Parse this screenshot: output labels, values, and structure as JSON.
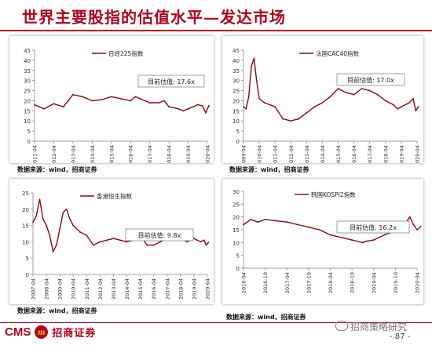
{
  "page": {
    "title": "世界主要股指的估值水平—发达市场",
    "source_1": "数据来源：wind，招商证券",
    "source_2": "数据来源：wind，招商证券",
    "source_3": "数据来源：wind，招商证券",
    "source_4": "数据来源：wind，招商证券",
    "logo_cms": "CMS",
    "logo_seal": "m",
    "logo_cn": "招商证券",
    "watermark": "招商策略研究",
    "page_number": "- 87 -"
  },
  "chart_data": [
    {
      "type": "line",
      "legend": "日经225指数",
      "annotation": "目前估值: 17.6x",
      "ylim": [
        0,
        45
      ],
      "yticks": [
        0,
        5,
        10,
        15,
        20,
        25,
        30,
        35,
        40,
        45
      ],
      "xlim": [
        "2011-04",
        "2020-04"
      ],
      "xticks": [
        "2011-04",
        "2012-04",
        "2013-04",
        "2014-04",
        "2015-04",
        "2016-04",
        "2017-04",
        "2018-04",
        "2019-04",
        "2020-04"
      ],
      "color": "#8b0a0a",
      "x": [
        "2011-04",
        "2011-10",
        "2012-04",
        "2012-10",
        "2013-01",
        "2013-04",
        "2013-10",
        "2014-04",
        "2014-10",
        "2015-04",
        "2015-10",
        "2016-04",
        "2016-07",
        "2016-10",
        "2017-04",
        "2017-10",
        "2018-01",
        "2018-04",
        "2018-10",
        "2019-01",
        "2019-04",
        "2019-10",
        "2020-01",
        "2020-03",
        "2020-05"
      ],
      "y": [
        18,
        16,
        18.5,
        17,
        20,
        23,
        22,
        20,
        20.5,
        22,
        21,
        20,
        22,
        21,
        19,
        19,
        20,
        17,
        16,
        15,
        16,
        18,
        17.5,
        14,
        17.6
      ]
    },
    {
      "type": "line",
      "legend": "法国CAC40指数",
      "annotation": "目前估值: 17.0x",
      "ylim": [
        0,
        45
      ],
      "yticks": [
        0,
        5,
        10,
        15,
        20,
        25,
        30,
        35,
        40,
        45
      ],
      "xlim": [
        "2009-04",
        "2020-04"
      ],
      "xticks": [
        "2009-04",
        "2010-04",
        "2011-04",
        "2012-04",
        "2013-04",
        "2014-04",
        "2015-04",
        "2016-04",
        "2017-04",
        "2018-04",
        "2019-04",
        "2020-04"
      ],
      "color": "#8b0a0a",
      "x": [
        "2009-04",
        "2009-06",
        "2009-08",
        "2009-10",
        "2009-12",
        "2010-02",
        "2010-04",
        "2010-08",
        "2011-04",
        "2011-10",
        "2012-04",
        "2012-10",
        "2013-04",
        "2013-10",
        "2014-04",
        "2014-10",
        "2015-04",
        "2015-10",
        "2016-04",
        "2016-10",
        "2017-04",
        "2017-10",
        "2018-04",
        "2018-10",
        "2019-01",
        "2019-04",
        "2019-10",
        "2020-01",
        "2020-03",
        "2020-05"
      ],
      "y": [
        17,
        16,
        22,
        37,
        41,
        30,
        21,
        19,
        17,
        11,
        10,
        11,
        14,
        17,
        19,
        22,
        26,
        24,
        23,
        26,
        25,
        23,
        20,
        18,
        16,
        17,
        19,
        21,
        15,
        17
      ]
    },
    {
      "type": "line",
      "legend": "香港恒生指数",
      "annotation": "目前估值: 9.8x",
      "ylim": [
        0,
        25
      ],
      "yticks": [
        0,
        5,
        10,
        15,
        20,
        25
      ],
      "xlim": [
        "2007-04",
        "2020-04"
      ],
      "xticks": [
        "2007-04",
        "2008-04",
        "2009-04",
        "2010-04",
        "2011-04",
        "2012-04",
        "2013-04",
        "2014-04",
        "2015-04",
        "2016-04",
        "2017-04",
        "2018-04",
        "2019-04",
        "2020-04"
      ],
      "color": "#8b0a0a",
      "x": [
        "2007-04",
        "2007-07",
        "2007-10",
        "2008-01",
        "2008-04",
        "2008-07",
        "2008-10",
        "2009-01",
        "2009-04",
        "2009-07",
        "2009-10",
        "2010-01",
        "2010-04",
        "2010-10",
        "2011-04",
        "2011-10",
        "2012-04",
        "2012-10",
        "2013-04",
        "2013-10",
        "2014-04",
        "2014-10",
        "2015-04",
        "2015-10",
        "2016-04",
        "2016-10",
        "2017-04",
        "2017-10",
        "2018-01",
        "2018-04",
        "2018-10",
        "2019-04",
        "2019-10",
        "2020-01",
        "2020-03",
        "2020-05"
      ],
      "y": [
        16,
        18,
        23,
        17,
        15,
        12,
        7,
        9,
        14,
        19,
        20,
        17,
        15,
        13,
        12,
        9,
        10,
        10.5,
        11,
        10.5,
        10,
        10.5,
        12,
        9,
        9,
        10,
        11,
        12.5,
        13,
        11,
        10,
        11,
        10,
        10.5,
        9,
        9.8
      ]
    },
    {
      "type": "line",
      "legend": "韩国KOSPI2指数",
      "annotation": "目前估值: 16.2x",
      "ylim": [
        0,
        30
      ],
      "yticks": [
        0,
        5,
        10,
        15,
        20,
        25,
        30
      ],
      "xlim": [
        "2016-04",
        "2020-04"
      ],
      "xticks": [
        "2016-04",
        "2016-10",
        "2017-04",
        "2017-10",
        "2018-04",
        "2018-10",
        "2019-04",
        "2019-10",
        "2020-04"
      ],
      "color": "#8b0a0a",
      "x": [
        "2016-04",
        "2016-06",
        "2016-08",
        "2016-10",
        "2017-01",
        "2017-04",
        "2017-07",
        "2017-10",
        "2018-01",
        "2018-04",
        "2018-07",
        "2018-10",
        "2019-01",
        "2019-02",
        "2019-04",
        "2019-07",
        "2019-10",
        "2020-01",
        "2020-02",
        "2020-03",
        "2020-04",
        "2020-05"
      ],
      "y": [
        17,
        19,
        18,
        19,
        18.5,
        18,
        17,
        16,
        15,
        13,
        12,
        11,
        10,
        10.5,
        11,
        13,
        14.5,
        18,
        20,
        17,
        15,
        16.2
      ]
    }
  ]
}
